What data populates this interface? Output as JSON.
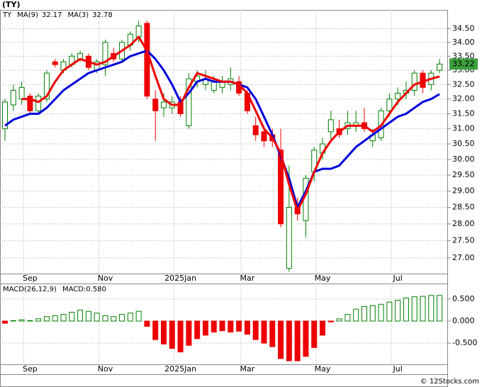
{
  "chart_data": [
    {
      "type": "candlestick",
      "title": "(TY)",
      "legend_title": "TY",
      "log_scale": true,
      "grid": true,
      "up_color": "#008000",
      "down_color": "#ee0000",
      "categories": [
        null,
        null,
        null,
        "Sep",
        null,
        null,
        null,
        null,
        null,
        null,
        null,
        null,
        "Nov",
        null,
        null,
        null,
        null,
        null,
        null,
        null,
        null,
        "2025Jan",
        null,
        null,
        null,
        null,
        null,
        null,
        null,
        "Mar",
        null,
        null,
        null,
        null,
        null,
        null,
        null,
        null,
        "May",
        null,
        null,
        null,
        null,
        null,
        null,
        null,
        null,
        "Jul",
        null,
        null,
        null,
        null,
        null
      ],
      "open": [
        31.0,
        31.8,
        32.0,
        32.1,
        31.6,
        32.0,
        33.3,
        33.0,
        33.2,
        33.4,
        33.5,
        33.0,
        33.2,
        33.6,
        33.4,
        33.9,
        34.2,
        34.7,
        32.0,
        31.7,
        31.7,
        31.9,
        31.1,
        32.6,
        32.5,
        32.3,
        32.4,
        32.5,
        32.6,
        32.2,
        31.1,
        30.9,
        30.8,
        30.3,
        26.7,
        28.5,
        28.1,
        29.6,
        30.2,
        30.9,
        31.0,
        31.0,
        31.1,
        31.2,
        30.6,
        30.7,
        31.6,
        32.0,
        32.2,
        32.3,
        32.9,
        32.5,
        33.0
      ],
      "high": [
        32.0,
        32.5,
        32.6,
        32.2,
        32.2,
        33.0,
        33.4,
        33.4,
        33.6,
        33.7,
        33.6,
        33.4,
        34.1,
        33.8,
        34.1,
        34.4,
        34.8,
        34.8,
        32.3,
        32.2,
        32.1,
        32.1,
        32.9,
        33.0,
        33.0,
        32.8,
        32.8,
        33.1,
        32.8,
        32.3,
        31.4,
        31.1,
        31.0,
        31.0,
        29.8,
        28.8,
        29.5,
        30.4,
        30.7,
        31.6,
        31.3,
        31.6,
        31.6,
        31.7,
        31.0,
        31.7,
        32.2,
        32.4,
        32.6,
        33.0,
        33.0,
        33.0,
        33.4
      ],
      "low": [
        30.6,
        31.6,
        31.8,
        31.5,
        31.5,
        31.9,
        33.1,
        32.9,
        33.1,
        33.3,
        33.0,
        32.9,
        32.8,
        33.3,
        33.3,
        33.7,
        34.0,
        32.0,
        30.6,
        31.4,
        31.5,
        31.4,
        31.0,
        32.4,
        32.3,
        32.2,
        32.2,
        32.3,
        32.1,
        31.5,
        30.6,
        30.4,
        30.4,
        27.9,
        26.6,
        28.1,
        27.6,
        29.3,
        30.0,
        30.6,
        30.7,
        30.8,
        30.9,
        30.9,
        30.4,
        30.6,
        31.4,
        31.8,
        32.0,
        32.1,
        32.2,
        32.3,
        32.9
      ],
      "close": [
        31.9,
        32.3,
        32.4,
        31.6,
        32.1,
        32.9,
        33.2,
        33.3,
        33.5,
        33.6,
        33.1,
        33.3,
        34.0,
        33.4,
        34.0,
        34.3,
        34.6,
        32.1,
        31.6,
        31.9,
        31.9,
        31.5,
        32.7,
        32.8,
        32.7,
        32.6,
        32.6,
        32.7,
        32.2,
        31.6,
        30.8,
        30.6,
        30.6,
        28.0,
        28.5,
        28.3,
        29.4,
        30.3,
        30.5,
        31.3,
        30.8,
        31.2,
        31.2,
        31.0,
        30.8,
        31.6,
        32.0,
        32.2,
        32.3,
        32.9,
        32.4,
        32.9,
        33.22
      ],
      "series": [
        {
          "name": "MA(9)",
          "color": "#0000dd",
          "values": [
            31.1,
            31.3,
            31.4,
            31.5,
            31.5,
            31.7,
            32.0,
            32.3,
            32.5,
            32.7,
            32.9,
            33.0,
            33.1,
            33.2,
            33.3,
            33.5,
            33.6,
            33.7,
            33.4,
            33.0,
            32.5,
            31.9,
            32.2,
            32.6,
            32.7,
            32.6,
            32.6,
            32.6,
            32.5,
            32.4,
            32.0,
            31.4,
            30.8,
            30.1,
            29.4,
            28.5,
            29.0,
            29.6,
            29.7,
            29.7,
            29.8,
            30.1,
            30.4,
            30.6,
            30.8,
            31.0,
            31.2,
            31.4,
            31.5,
            31.7,
            31.9,
            32.0,
            32.17
          ]
        },
        {
          "name": "MA(3)",
          "color": "#ee0000",
          "values": [
            null,
            null,
            32.0,
            32.0,
            31.9,
            32.1,
            32.6,
            33.0,
            33.2,
            33.4,
            33.3,
            33.2,
            33.3,
            33.5,
            33.7,
            33.9,
            34.2,
            33.7,
            32.8,
            32.0,
            31.8,
            31.8,
            32.4,
            32.9,
            32.8,
            32.7,
            32.6,
            32.6,
            32.5,
            32.2,
            31.6,
            31.0,
            30.7,
            30.2,
            29.2,
            28.4,
            28.9,
            29.6,
            30.2,
            30.6,
            30.9,
            31.1,
            31.1,
            31.1,
            30.9,
            31.1,
            31.5,
            31.9,
            32.2,
            32.5,
            32.6,
            32.7,
            32.78
          ]
        }
      ],
      "ylim": [
        26.55,
        35.2
      ],
      "yticks": [
        {
          "value": 34.5,
          "label": "34.50"
        },
        {
          "value": 34,
          "label": "34.00"
        },
        {
          "value": 33.5,
          "label": "33.50"
        },
        {
          "value": 33,
          "label": "33.00"
        },
        {
          "value": 32.5,
          "label": "32.50"
        },
        {
          "value": 32,
          "label": "32.00"
        },
        {
          "value": 31.5,
          "label": "31.50"
        },
        {
          "value": 31,
          "label": "31.00"
        },
        {
          "value": 30.5,
          "label": "30.50"
        },
        {
          "value": 30,
          "label": "30.00"
        },
        {
          "value": 29.5,
          "label": "29.50"
        },
        {
          "value": 29,
          "label": "29.00"
        },
        {
          "value": 28.5,
          "label": "28.50"
        },
        {
          "value": 28,
          "label": "28.00"
        },
        {
          "value": 27.5,
          "label": "27.50"
        },
        {
          "value": 27,
          "label": "27.00"
        }
      ]
    },
    {
      "type": "bar",
      "legend_title": "MACD(26,12,9)",
      "grid": true,
      "up_color": "#008000",
      "down_color": "#ee0000",
      "categories": [
        null,
        null,
        null,
        "Sep",
        null,
        null,
        null,
        null,
        null,
        null,
        null,
        null,
        "Nov",
        null,
        null,
        null,
        null,
        null,
        null,
        null,
        null,
        "2025Jan",
        null,
        null,
        null,
        null,
        null,
        null,
        null,
        "Mar",
        null,
        null,
        null,
        null,
        null,
        null,
        null,
        null,
        "May",
        null,
        null,
        null,
        null,
        null,
        null,
        null,
        null,
        "Jul",
        null,
        null,
        null,
        null,
        null
      ],
      "series": [
        {
          "name": "MACD:0.580",
          "color": "#0000dd",
          "values": [
            -0.05,
            0.01,
            0.03,
            0.01,
            0.05,
            0.1,
            0.12,
            0.15,
            0.2,
            0.25,
            0.22,
            0.18,
            0.12,
            0.1,
            0.15,
            0.18,
            0.22,
            -0.12,
            -0.42,
            -0.52,
            -0.62,
            -0.7,
            -0.55,
            -0.4,
            -0.32,
            -0.25,
            -0.22,
            -0.25,
            -0.23,
            -0.3,
            -0.42,
            -0.5,
            -0.58,
            -0.85,
            -0.9,
            -0.9,
            -0.8,
            -0.6,
            -0.32,
            -0.02,
            0.05,
            0.15,
            0.27,
            0.33,
            0.35,
            0.38,
            0.43,
            0.47,
            0.52,
            0.55,
            0.56,
            0.58,
            0.58
          ]
        }
      ],
      "ylim": [
        -0.98,
        0.85
      ],
      "yticks": [
        {
          "value": 0.5,
          "label": "0.500"
        },
        {
          "value": 0,
          "label": "0.000"
        },
        {
          "value": -0.5,
          "label": "-0.500"
        }
      ]
    }
  ],
  "footer": "© 12Stocks.com"
}
